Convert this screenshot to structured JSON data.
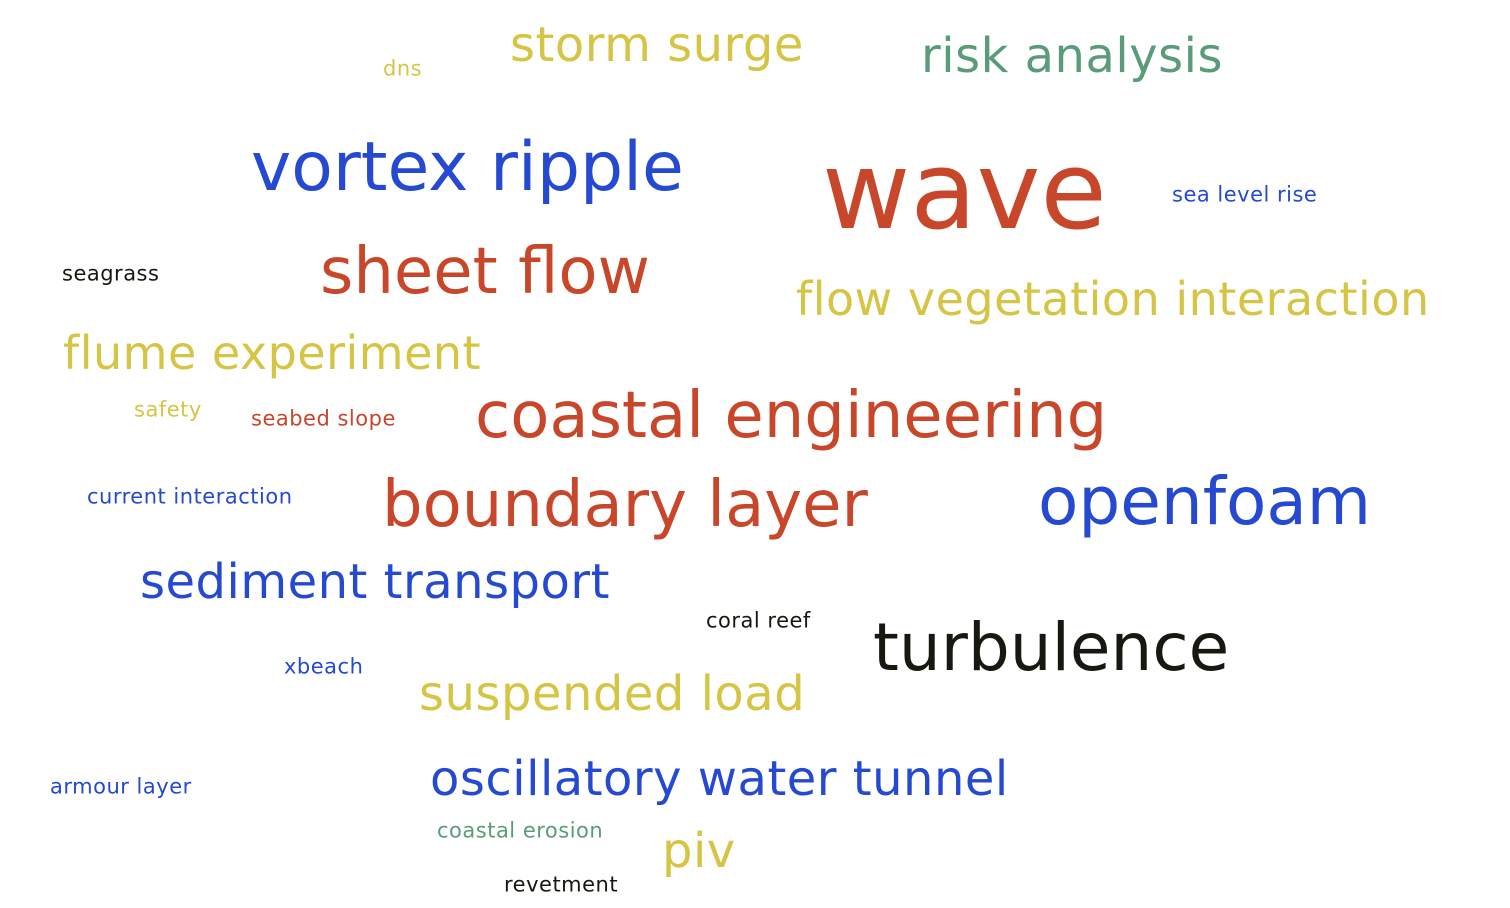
{
  "word_cloud": {
    "colors": {
      "red": "#c8462a",
      "blue": "#2549d0",
      "yellow": "#d6c444",
      "green": "#5a9c7a",
      "black": "#181810"
    },
    "words": [
      {
        "text": "wave",
        "color": "red"
      },
      {
        "text": "vortex ripple",
        "color": "blue"
      },
      {
        "text": "storm surge",
        "color": "yellow"
      },
      {
        "text": "risk analysis",
        "color": "green"
      },
      {
        "text": "dns",
        "color": "yellow"
      },
      {
        "text": "sea level rise",
        "color": "blue"
      },
      {
        "text": "seagrass",
        "color": "black"
      },
      {
        "text": "sheet flow",
        "color": "red"
      },
      {
        "text": "flow vegetation interaction",
        "color": "yellow"
      },
      {
        "text": "flume experiment",
        "color": "yellow"
      },
      {
        "text": "safety",
        "color": "yellow"
      },
      {
        "text": "seabed slope",
        "color": "red"
      },
      {
        "text": "coastal engineering",
        "color": "red"
      },
      {
        "text": "current interaction",
        "color": "blue"
      },
      {
        "text": "boundary layer",
        "color": "red"
      },
      {
        "text": "openfoam",
        "color": "blue"
      },
      {
        "text": "sediment transport",
        "color": "blue"
      },
      {
        "text": "coral reef",
        "color": "black"
      },
      {
        "text": "turbulence",
        "color": "black"
      },
      {
        "text": "xbeach",
        "color": "blue"
      },
      {
        "text": "suspended load",
        "color": "yellow"
      },
      {
        "text": "armour layer",
        "color": "blue"
      },
      {
        "text": "oscillatory water tunnel",
        "color": "blue"
      },
      {
        "text": "coastal erosion",
        "color": "green"
      },
      {
        "text": "piv",
        "color": "yellow"
      },
      {
        "text": "revetment",
        "color": "black"
      }
    ]
  }
}
